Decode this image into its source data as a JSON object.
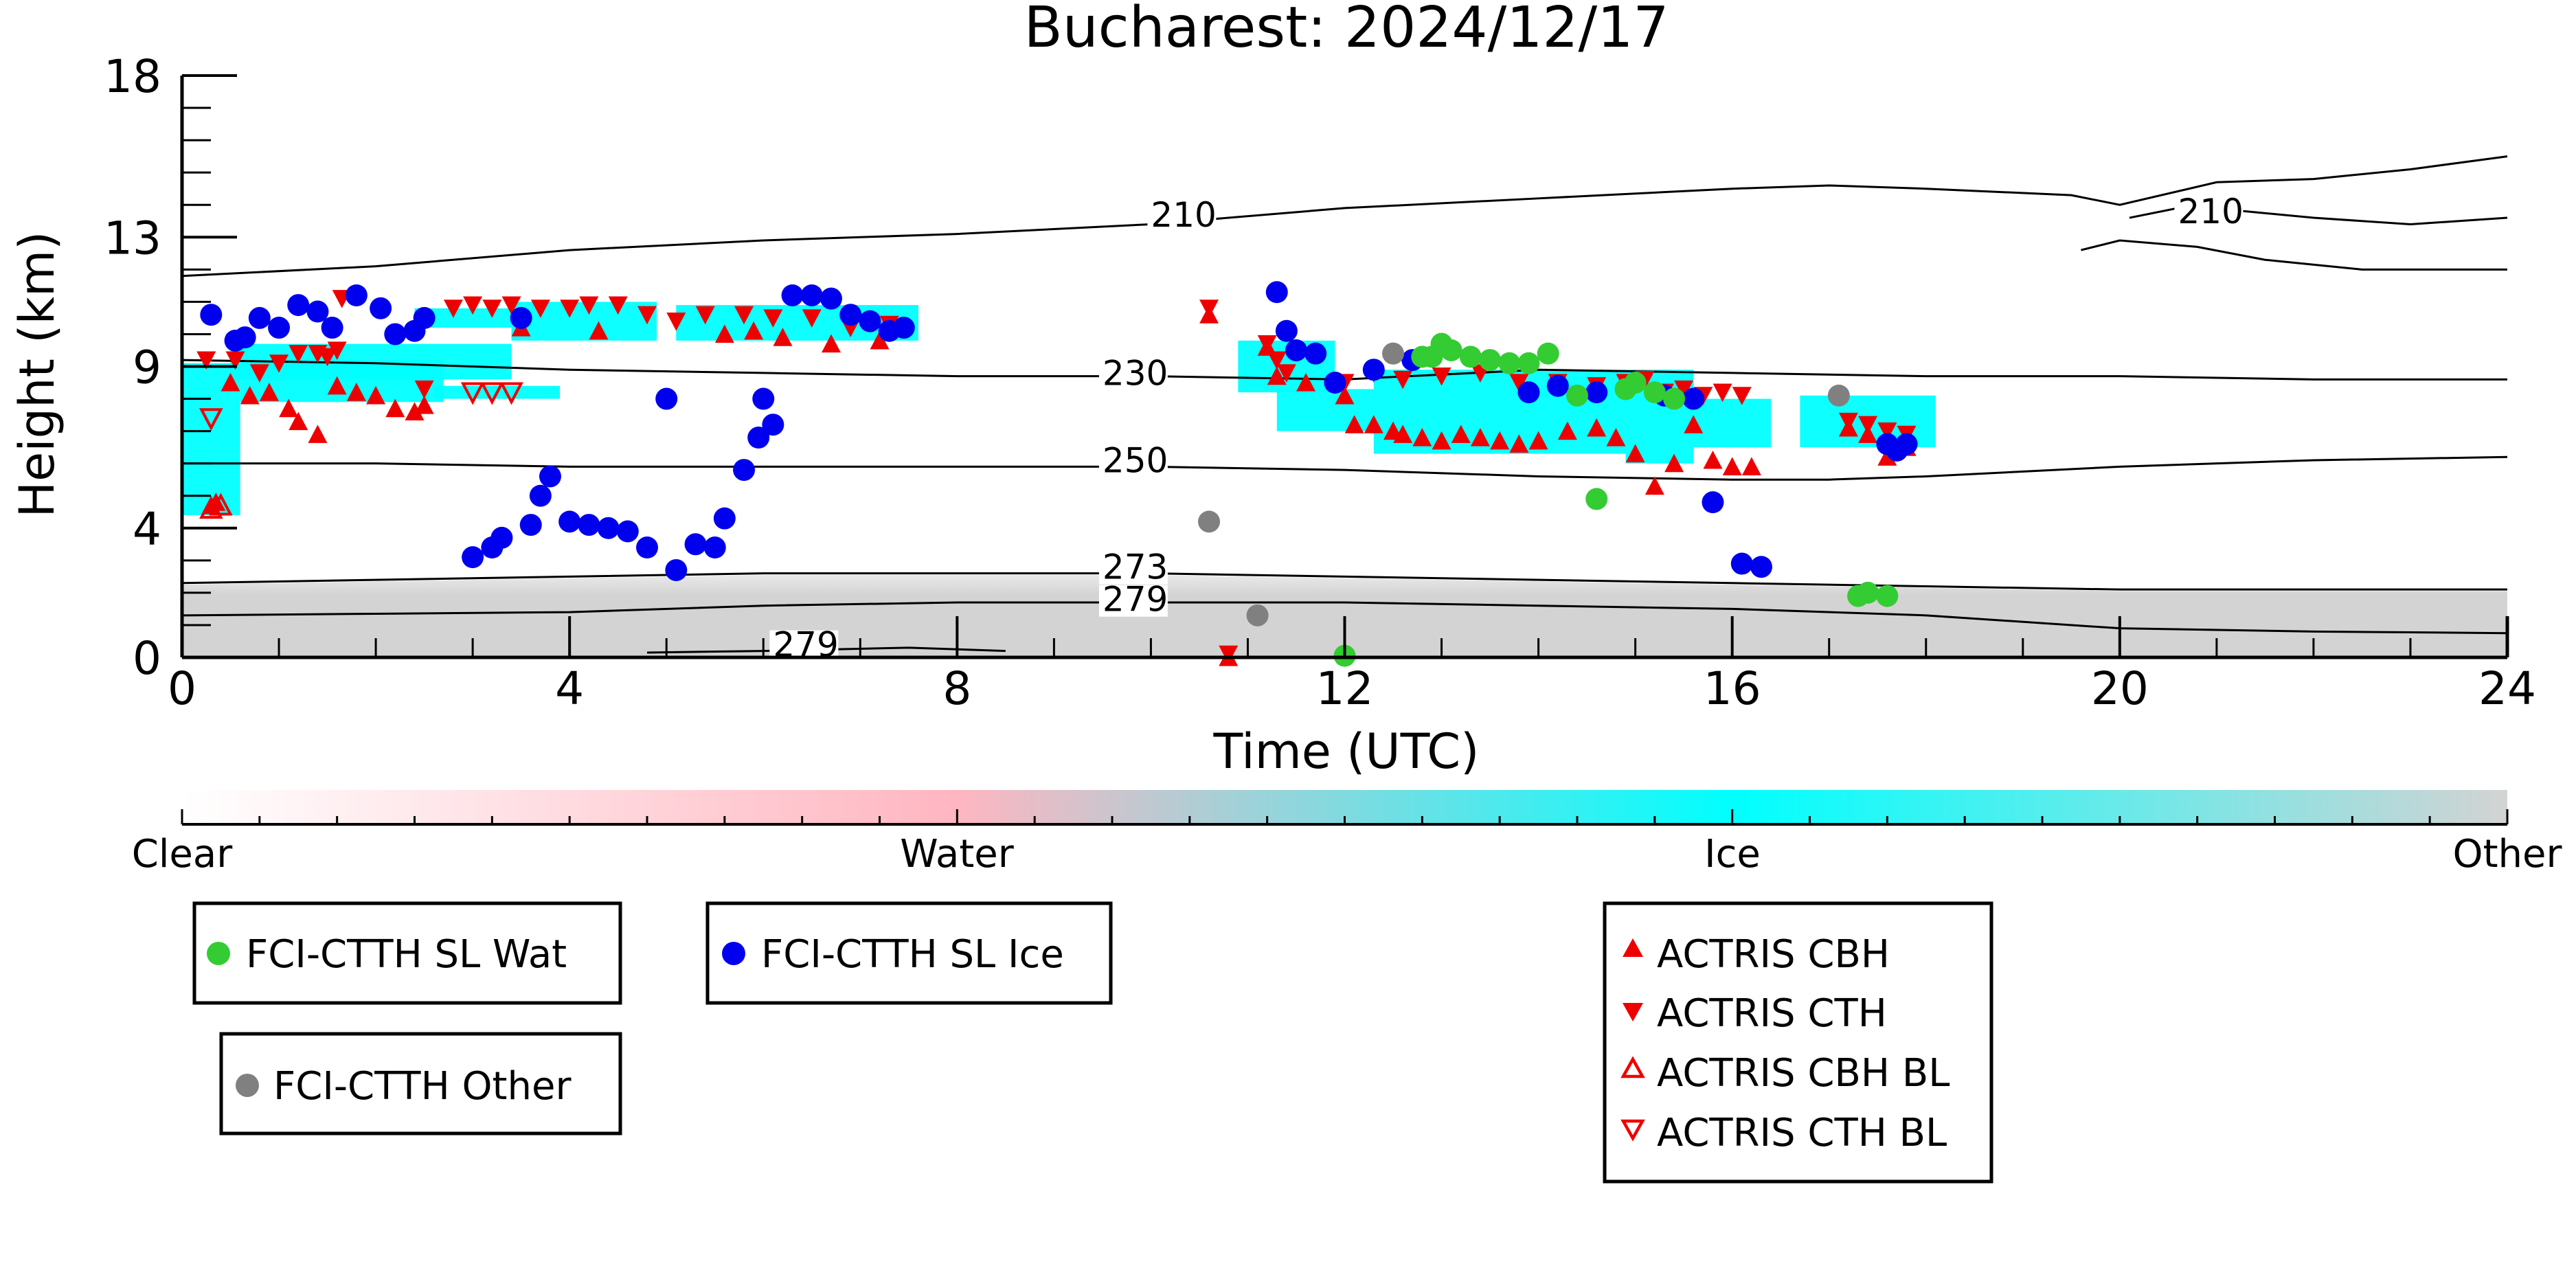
{
  "chart_data": {
    "type": "scatter",
    "title": "Bucharest: 2024/12/17",
    "xlabel": "Time (UTC)",
    "ylabel": "Height (km)",
    "xlim": [
      0,
      24
    ],
    "ylim": [
      0,
      18
    ],
    "x_ticks": [
      0,
      4,
      8,
      12,
      16,
      20,
      24
    ],
    "y_ticks": [
      0,
      4,
      9,
      13,
      18
    ],
    "colorbar": {
      "labels": [
        "Clear",
        "Water",
        "Ice",
        "Other"
      ],
      "colors": {
        "clear": "#ffffff",
        "water": "#ffb6c1",
        "ice": "#00ffff",
        "other": "#d3d3d3"
      }
    },
    "legend": {
      "fci_wat": "FCI-CTTH SL Wat",
      "fci_ice": "FCI-CTTH SL Ice",
      "fci_other": "FCI-CTTH Other",
      "cbh": "ACTRIS CBH",
      "cth": "ACTRIS CTH",
      "cbh_bl": "ACTRIS CBH BL",
      "cth_bl": "ACTRIS CTH BL"
    },
    "series_colors": {
      "wat": "#33cc33",
      "ice": "#0000ee",
      "other": "#808080",
      "actris": "#ee0000"
    },
    "contours": [
      {
        "label": "210",
        "label_at": [
          10.0,
          13.5
        ],
        "points": [
          [
            0,
            11.8
          ],
          [
            2,
            12.1
          ],
          [
            4,
            12.6
          ],
          [
            6,
            12.9
          ],
          [
            8,
            13.1
          ],
          [
            10,
            13.4
          ],
          [
            12,
            13.9
          ],
          [
            14,
            14.2
          ],
          [
            16,
            14.5
          ],
          [
            17,
            14.6
          ],
          [
            18,
            14.5
          ],
          [
            19.5,
            14.3
          ],
          [
            20,
            14.0
          ],
          [
            21,
            14.7
          ],
          [
            22,
            14.8
          ],
          [
            23,
            15.1
          ],
          [
            24,
            15.5
          ]
        ]
      },
      {
        "label": "210",
        "label_at": [
          20.6,
          13.6
        ],
        "points": [
          [
            20.1,
            13.6
          ],
          [
            20.6,
            13.9
          ],
          [
            21.3,
            13.8
          ],
          [
            22,
            13.6
          ],
          [
            23,
            13.4
          ],
          [
            24,
            13.6
          ]
        ]
      },
      {
        "label": "",
        "label_at": null,
        "points": [
          [
            19.6,
            12.6
          ],
          [
            20,
            12.9
          ],
          [
            20.8,
            12.7
          ],
          [
            21.5,
            12.3
          ],
          [
            22.5,
            12.0
          ],
          [
            24,
            12.0
          ]
        ]
      },
      {
        "label": "230",
        "label_at": [
          9.5,
          8.6
        ],
        "points": [
          [
            0,
            9.2
          ],
          [
            2,
            9.1
          ],
          [
            4,
            8.9
          ],
          [
            6,
            8.8
          ],
          [
            8,
            8.7
          ],
          [
            10,
            8.7
          ],
          [
            12,
            8.6
          ],
          [
            14,
            8.9
          ],
          [
            16,
            8.8
          ],
          [
            18,
            8.7
          ],
          [
            20,
            8.7
          ],
          [
            22,
            8.6
          ],
          [
            24,
            8.6
          ]
        ]
      },
      {
        "label": "250",
        "label_at": [
          9.5,
          5.9
        ],
        "points": [
          [
            0,
            6.0
          ],
          [
            2,
            6.0
          ],
          [
            4,
            5.9
          ],
          [
            6,
            5.9
          ],
          [
            8,
            5.9
          ],
          [
            10,
            5.9
          ],
          [
            12,
            5.8
          ],
          [
            14,
            5.6
          ],
          [
            16,
            5.5
          ],
          [
            17,
            5.5
          ],
          [
            18,
            5.6
          ],
          [
            20,
            5.9
          ],
          [
            22,
            6.1
          ],
          [
            24,
            6.2
          ]
        ]
      },
      {
        "label": "273",
        "label_at": [
          9.5,
          2.6
        ],
        "points": [
          [
            0,
            2.3
          ],
          [
            2,
            2.4
          ],
          [
            4,
            2.5
          ],
          [
            6,
            2.6
          ],
          [
            8,
            2.6
          ],
          [
            10,
            2.6
          ],
          [
            12,
            2.5
          ],
          [
            14,
            2.4
          ],
          [
            16,
            2.3
          ],
          [
            18,
            2.2
          ],
          [
            20,
            2.1
          ],
          [
            22,
            2.1
          ],
          [
            24,
            2.1
          ]
        ]
      },
      {
        "label": "279",
        "label_at": [
          9.5,
          1.6
        ],
        "points": [
          [
            0,
            1.3
          ],
          [
            2,
            1.35
          ],
          [
            4,
            1.4
          ],
          [
            6,
            1.6
          ],
          [
            8,
            1.7
          ],
          [
            10,
            1.7
          ],
          [
            12,
            1.7
          ],
          [
            14,
            1.6
          ],
          [
            16,
            1.5
          ],
          [
            18,
            1.3
          ],
          [
            20,
            0.9
          ],
          [
            22,
            0.8
          ],
          [
            24,
            0.75
          ]
        ]
      },
      {
        "label": "279",
        "label_at": [
          6.1,
          0.2
        ],
        "points": [
          [
            4.8,
            0.15
          ],
          [
            6,
            0.2
          ],
          [
            7.5,
            0.3
          ],
          [
            8.5,
            0.2
          ]
        ]
      }
    ],
    "ice_regions": [
      [
        0.0,
        4.4,
        0.6,
        9.1
      ],
      [
        0.6,
        7.9,
        2.7,
        9.2
      ],
      [
        2.6,
        8.0,
        3.9,
        8.4
      ],
      [
        0.5,
        8.6,
        3.4,
        9.7
      ],
      [
        2.4,
        10.2,
        3.4,
        10.8
      ],
      [
        3.4,
        9.8,
        4.9,
        11.0
      ],
      [
        5.1,
        9.8,
        7.6,
        10.9
      ],
      [
        10.9,
        8.2,
        11.9,
        9.8
      ],
      [
        11.3,
        7.0,
        12.3,
        8.3
      ],
      [
        12.3,
        6.3,
        14.9,
        8.9
      ],
      [
        14.9,
        6.0,
        15.6,
        8.9
      ],
      [
        15.6,
        6.5,
        16.4,
        8.0
      ],
      [
        16.7,
        6.5,
        18.1,
        8.1
      ]
    ],
    "fci_ice": [
      [
        0.3,
        10.6
      ],
      [
        0.55,
        9.8
      ],
      [
        0.65,
        9.9
      ],
      [
        0.8,
        10.5
      ],
      [
        1.0,
        10.2
      ],
      [
        1.2,
        10.9
      ],
      [
        1.4,
        10.7
      ],
      [
        1.55,
        10.2
      ],
      [
        1.8,
        11.2
      ],
      [
        2.05,
        10.8
      ],
      [
        2.2,
        10.0
      ],
      [
        2.4,
        10.1
      ],
      [
        2.5,
        10.5
      ],
      [
        3.0,
        3.1
      ],
      [
        3.2,
        3.4
      ],
      [
        3.3,
        3.7
      ],
      [
        3.6,
        4.1
      ],
      [
        3.7,
        5.0
      ],
      [
        3.8,
        5.6
      ],
      [
        4.0,
        4.2
      ],
      [
        4.2,
        4.1
      ],
      [
        4.4,
        4.0
      ],
      [
        4.6,
        3.9
      ],
      [
        4.8,
        3.4
      ],
      [
        5.1,
        2.7
      ],
      [
        5.3,
        3.5
      ],
      [
        5.5,
        3.4
      ],
      [
        5.6,
        4.3
      ],
      [
        5.8,
        5.8
      ],
      [
        5.95,
        6.8
      ],
      [
        6.1,
        7.2
      ],
      [
        6.0,
        8.0
      ],
      [
        6.3,
        11.2
      ],
      [
        6.5,
        11.2
      ],
      [
        6.7,
        11.1
      ],
      [
        6.9,
        10.6
      ],
      [
        7.1,
        10.4
      ],
      [
        7.3,
        10.1
      ],
      [
        7.45,
        10.2
      ],
      [
        5.0,
        8.0
      ],
      [
        3.5,
        10.5
      ],
      [
        11.3,
        11.3
      ],
      [
        11.4,
        10.1
      ],
      [
        11.5,
        9.5
      ],
      [
        11.7,
        9.4
      ],
      [
        11.9,
        8.5
      ],
      [
        12.3,
        8.9
      ],
      [
        12.7,
        9.2
      ],
      [
        13.9,
        8.2
      ],
      [
        14.2,
        8.4
      ],
      [
        14.6,
        8.2
      ],
      [
        15.3,
        8.1
      ],
      [
        15.6,
        8.0
      ],
      [
        15.8,
        4.8
      ],
      [
        16.1,
        2.9
      ],
      [
        16.3,
        2.8
      ],
      [
        17.6,
        6.6
      ],
      [
        17.7,
        6.4
      ],
      [
        17.8,
        6.6
      ]
    ],
    "fci_wat": [
      [
        12.8,
        9.3
      ],
      [
        12.9,
        9.3
      ],
      [
        13.0,
        9.7
      ],
      [
        13.1,
        9.5
      ],
      [
        13.3,
        9.3
      ],
      [
        13.5,
        9.2
      ],
      [
        13.7,
        9.1
      ],
      [
        13.9,
        9.1
      ],
      [
        14.1,
        9.4
      ],
      [
        14.4,
        8.1
      ],
      [
        14.6,
        4.9
      ],
      [
        14.9,
        8.3
      ],
      [
        15.0,
        8.5
      ],
      [
        15.2,
        8.2
      ],
      [
        15.4,
        8.0
      ],
      [
        17.3,
        1.9
      ],
      [
        17.4,
        2.0
      ],
      [
        17.6,
        1.9
      ],
      [
        12.0,
        0.05
      ]
    ],
    "fci_other": [
      [
        10.6,
        4.2
      ],
      [
        11.1,
        1.3
      ],
      [
        12.5,
        9.4
      ],
      [
        17.1,
        8.1
      ]
    ],
    "cbh": [
      [
        0.3,
        4.7
      ],
      [
        0.35,
        4.8
      ],
      [
        0.5,
        8.5
      ],
      [
        0.7,
        8.1
      ],
      [
        0.9,
        8.2
      ],
      [
        1.1,
        7.7
      ],
      [
        1.2,
        7.3
      ],
      [
        1.4,
        6.9
      ],
      [
        1.6,
        8.4
      ],
      [
        1.8,
        8.2
      ],
      [
        2.0,
        8.1
      ],
      [
        2.2,
        7.7
      ],
      [
        2.4,
        7.6
      ],
      [
        2.5,
        7.8
      ],
      [
        3.5,
        10.2
      ],
      [
        4.3,
        10.1
      ],
      [
        5.6,
        10.0
      ],
      [
        5.9,
        10.1
      ],
      [
        6.2,
        9.9
      ],
      [
        6.7,
        9.7
      ],
      [
        7.2,
        9.8
      ],
      [
        10.6,
        10.6
      ],
      [
        11.2,
        9.6
      ],
      [
        11.3,
        8.7
      ],
      [
        11.6,
        8.5
      ],
      [
        12.0,
        8.1
      ],
      [
        12.1,
        7.2
      ],
      [
        12.3,
        7.2
      ],
      [
        12.5,
        7.0
      ],
      [
        12.6,
        6.9
      ],
      [
        12.8,
        6.8
      ],
      [
        13.0,
        6.7
      ],
      [
        13.2,
        6.9
      ],
      [
        13.4,
        6.8
      ],
      [
        13.6,
        6.7
      ],
      [
        13.8,
        6.6
      ],
      [
        14.0,
        6.7
      ],
      [
        14.3,
        7.0
      ],
      [
        14.6,
        7.1
      ],
      [
        14.8,
        6.8
      ],
      [
        15.0,
        6.3
      ],
      [
        15.2,
        5.3
      ],
      [
        15.4,
        6.0
      ],
      [
        15.6,
        7.2
      ],
      [
        15.8,
        6.1
      ],
      [
        16.0,
        5.9
      ],
      [
        16.2,
        5.9
      ],
      [
        17.2,
        7.1
      ],
      [
        17.4,
        6.9
      ],
      [
        17.6,
        6.2
      ],
      [
        17.8,
        6.5
      ],
      [
        10.8,
        0.0
      ]
    ],
    "cth": [
      [
        0.25,
        9.2
      ],
      [
        0.55,
        9.2
      ],
      [
        0.8,
        8.8
      ],
      [
        1.0,
        9.1
      ],
      [
        1.2,
        9.4
      ],
      [
        1.4,
        9.4
      ],
      [
        1.5,
        9.3
      ],
      [
        1.6,
        9.5
      ],
      [
        1.65,
        11.1
      ],
      [
        2.5,
        8.3
      ],
      [
        2.8,
        10.8
      ],
      [
        3.0,
        10.9
      ],
      [
        3.2,
        10.8
      ],
      [
        3.4,
        10.9
      ],
      [
        3.7,
        10.8
      ],
      [
        4.0,
        10.8
      ],
      [
        4.2,
        10.9
      ],
      [
        4.5,
        10.9
      ],
      [
        4.8,
        10.6
      ],
      [
        5.1,
        10.4
      ],
      [
        5.4,
        10.6
      ],
      [
        5.8,
        10.6
      ],
      [
        6.1,
        10.5
      ],
      [
        6.5,
        10.5
      ],
      [
        6.9,
        10.2
      ],
      [
        7.3,
        10.3
      ],
      [
        10.6,
        10.8
      ],
      [
        11.2,
        9.7
      ],
      [
        11.3,
        9.2
      ],
      [
        11.4,
        8.8
      ],
      [
        12.0,
        8.5
      ],
      [
        12.3,
        8.8
      ],
      [
        12.6,
        8.6
      ],
      [
        13.0,
        8.7
      ],
      [
        13.4,
        8.8
      ],
      [
        13.8,
        8.5
      ],
      [
        14.2,
        8.5
      ],
      [
        14.6,
        8.4
      ],
      [
        14.9,
        8.5
      ],
      [
        15.1,
        8.6
      ],
      [
        15.3,
        8.2
      ],
      [
        15.5,
        8.3
      ],
      [
        15.7,
        8.1
      ],
      [
        15.9,
        8.2
      ],
      [
        16.1,
        8.1
      ],
      [
        17.2,
        7.3
      ],
      [
        17.4,
        7.2
      ],
      [
        17.6,
        7.0
      ],
      [
        17.8,
        6.9
      ],
      [
        10.8,
        0.1
      ]
    ],
    "cbh_bl": [
      [
        0.3,
        4.6
      ],
      [
        0.4,
        4.7
      ]
    ],
    "cth_bl": [
      [
        0.3,
        7.4
      ],
      [
        3.0,
        8.2
      ],
      [
        3.2,
        8.2
      ],
      [
        3.4,
        8.2
      ]
    ]
  }
}
